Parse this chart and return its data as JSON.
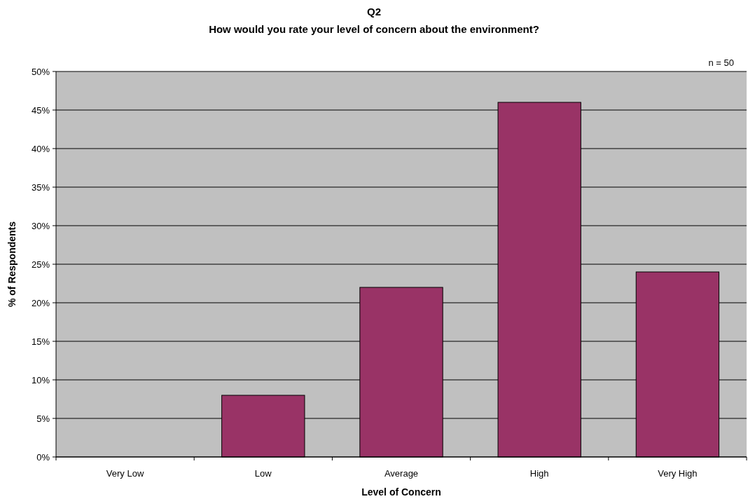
{
  "chart_data": {
    "type": "bar",
    "title": "Q2",
    "subtitle": "How would you rate your level of concern about the environment?",
    "xlabel": "Level of Concern",
    "ylabel": "% of Respondents",
    "annotations": [
      "n = 50"
    ],
    "categories": [
      "Very Low",
      "Low",
      "Average",
      "High",
      "Very High"
    ],
    "values": [
      0,
      8,
      22,
      46,
      24
    ],
    "color": "#993366",
    "ylim": [
      0,
      50
    ],
    "yticks": [
      {
        "value": 0,
        "label": "0%"
      },
      {
        "value": 5,
        "label": "5%"
      },
      {
        "value": 10,
        "label": "10%"
      },
      {
        "value": 15,
        "label": "15%"
      },
      {
        "value": 20,
        "label": "20%"
      },
      {
        "value": 25,
        "label": "25%"
      },
      {
        "value": 30,
        "label": "30%"
      },
      {
        "value": 35,
        "label": "35%"
      },
      {
        "value": 40,
        "label": "40%"
      },
      {
        "value": 45,
        "label": "45%"
      },
      {
        "value": 50,
        "label": "50%"
      }
    ],
    "grid": "y"
  }
}
